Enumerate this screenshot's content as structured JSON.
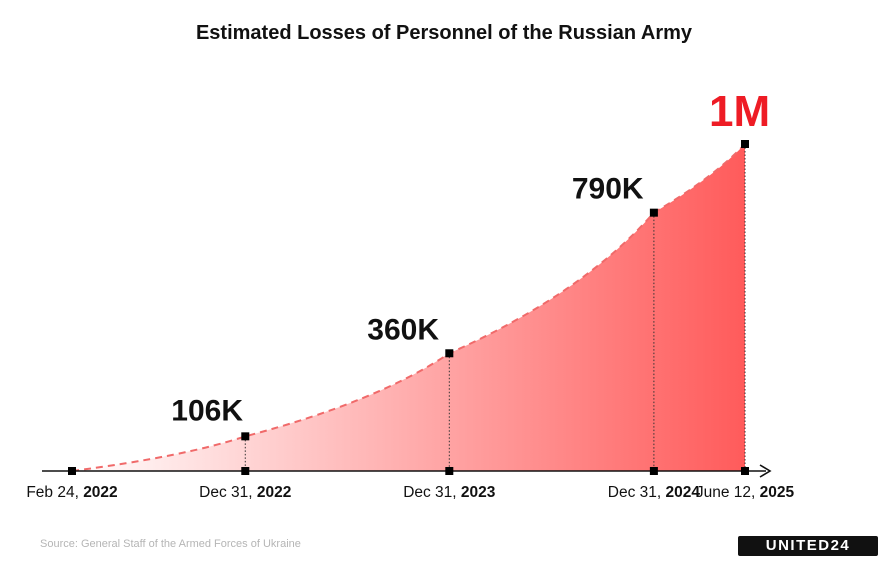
{
  "chart_data": {
    "type": "area",
    "title": "Estimated Losses of Personnel of the Russian Army",
    "x": [
      {
        "label": "Feb 24,",
        "year": "2022",
        "date": "2022-02-24"
      },
      {
        "label": "Dec 31,",
        "year": "2022",
        "date": "2022-12-31"
      },
      {
        "label": "Dec 31,",
        "year": "2023",
        "date": "2023-12-31"
      },
      {
        "label": "Dec 31,",
        "year": "2024",
        "date": "2024-12-31"
      },
      {
        "label": "June 12,",
        "year": "2025",
        "date": "2025-06-12"
      }
    ],
    "values": [
      0,
      106000,
      360000,
      790000,
      1000000
    ],
    "value_labels": [
      "",
      "106K",
      "360K",
      "790K",
      "1M"
    ],
    "xlabel": "",
    "ylabel": "",
    "grid": false,
    "colors": {
      "fill_start": "#ffffff",
      "fill_end": "#ff5b5b",
      "line": "#f06a6a",
      "peak_label": "#ee1c25"
    }
  },
  "footer": {
    "source": "Source: General Staff of the Armed Forces of Ukraine",
    "logo": "UNITED24"
  }
}
